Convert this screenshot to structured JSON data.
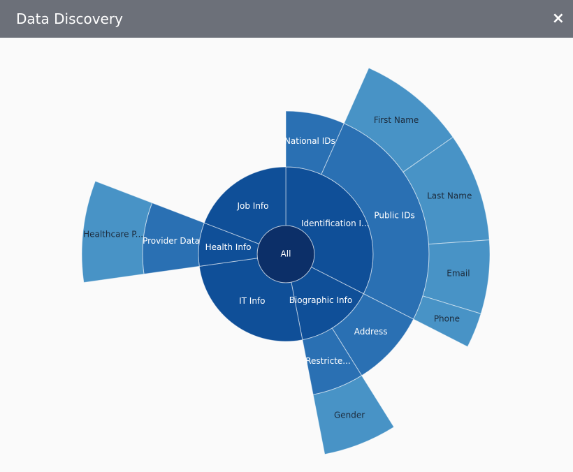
{
  "header": {
    "title": "Data Discovery",
    "close": "×"
  },
  "chart_data": {
    "type": "sunburst",
    "level_colors": [
      "#0c2f68",
      "#0f4f98",
      "#2a70b3",
      "#4893c6"
    ],
    "label_colors": [
      "#ffffff",
      "#ffffff",
      "#ffffff",
      "#1c2b3c"
    ],
    "root": {
      "name": "All",
      "value": 360,
      "children": [
        {
          "name": "Identification I...",
          "value": 117,
          "children": [
            {
              "name": "National IDs",
              "value": 24
            },
            {
              "name": "Public IDs",
              "value": 93,
              "children": [
                {
                  "name": "First Name",
                  "value": 31
                },
                {
                  "name": "Last Name",
                  "value": 31
                },
                {
                  "name": "Email",
                  "value": 21
                },
                {
                  "name": "Phone",
                  "value": 10
                }
              ]
            }
          ]
        },
        {
          "name": "Biographic Info",
          "value": 52,
          "children": [
            {
              "name": "Address",
              "value": 31
            },
            {
              "name": "Restricte...",
              "value": 21,
              "children": [
                {
                  "name": "Gender",
                  "value": 21
                }
              ]
            }
          ]
        },
        {
          "name": "IT Info",
          "value": 93
        },
        {
          "name": "Health Info",
          "value": 29,
          "children": [
            {
              "name": "Provider Data",
              "value": 29,
              "children": [
                {
                  "name": "Healthcare P...",
                  "value": 29
                }
              ]
            }
          ]
        },
        {
          "name": "Job Info",
          "value": 69
        }
      ]
    }
  }
}
